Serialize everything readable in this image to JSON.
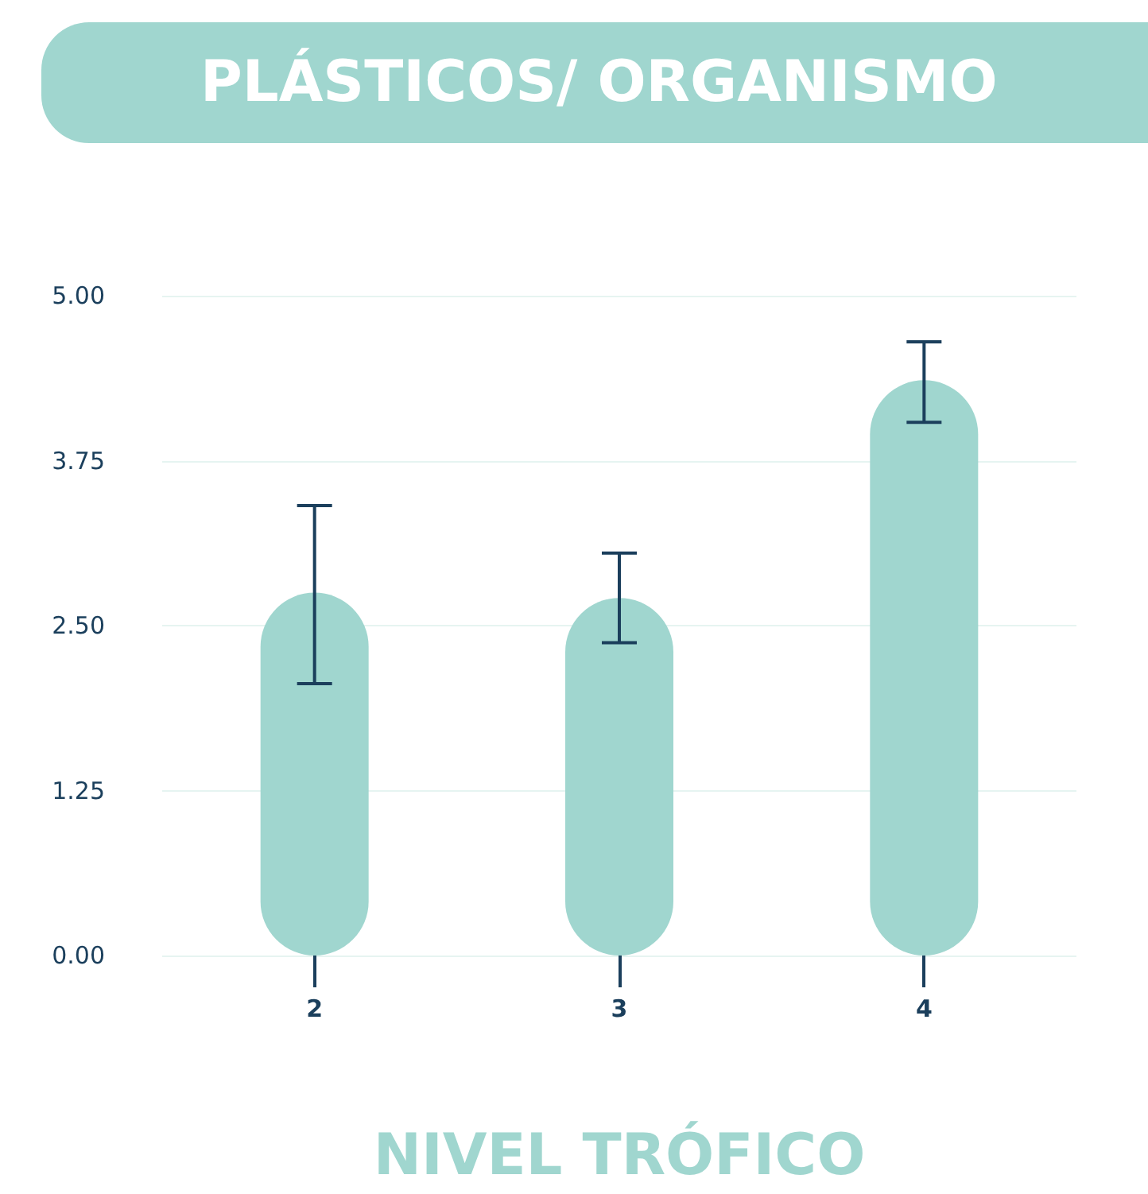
{
  "chart_data": {
    "type": "bar",
    "title": "PLÁSTICOS/ ORGANISMO",
    "xlabel": "NIVEL TRÓFICO",
    "categories": [
      "2",
      "3",
      "4"
    ],
    "values": [
      2.75,
      2.71,
      4.36
    ],
    "color": "#a0d6cf",
    "errors": [
      [
        2.06,
        3.41
      ],
      [
        2.37,
        3.05
      ],
      [
        4.04,
        4.65
      ]
    ],
    "ylim": [
      0,
      5
    ],
    "yticks": [
      {
        "value": 0,
        "label": "0.00"
      },
      {
        "value": 1.25,
        "label": "1.25"
      },
      {
        "value": 2.5,
        "label": "2.50"
      },
      {
        "value": 3.75,
        "label": "3.75"
      },
      {
        "value": 5,
        "label": "5.00"
      }
    ],
    "grid": "y"
  }
}
